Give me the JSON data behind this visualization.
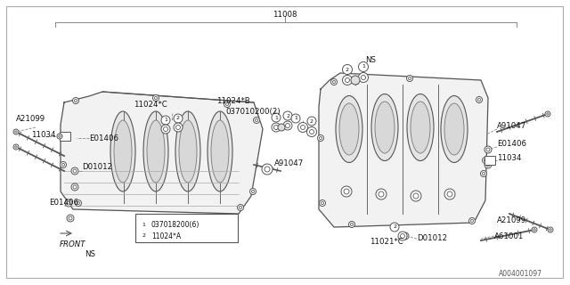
{
  "title": "11008",
  "part_number": "A004001097",
  "bg_color": "#ffffff",
  "lc": "#555555",
  "tc": "#111111",
  "labels": {
    "A21099_L": "A21099",
    "D01012_L": "D01012",
    "11024C_L": "11024*C",
    "E01406_L1": "E01406",
    "11024B_L": "11024*B",
    "037010200_L": "037010200(2)",
    "A91047_L1": "A91047",
    "11034_L1": "11034",
    "E01406_L2": "E01406",
    "11034_L2": "11034",
    "A91047_L2": "A91047",
    "E01406_L3": "E01406",
    "NS_top": "NS",
    "NS_bot": "NS",
    "FRONT": "FRONT",
    "A21099_R": "A21099",
    "D01012_R": "D01012",
    "A61001": "A61001",
    "11021C": "11021*C",
    "legend1": "037018200(6)",
    "legend2": "11024*A"
  }
}
